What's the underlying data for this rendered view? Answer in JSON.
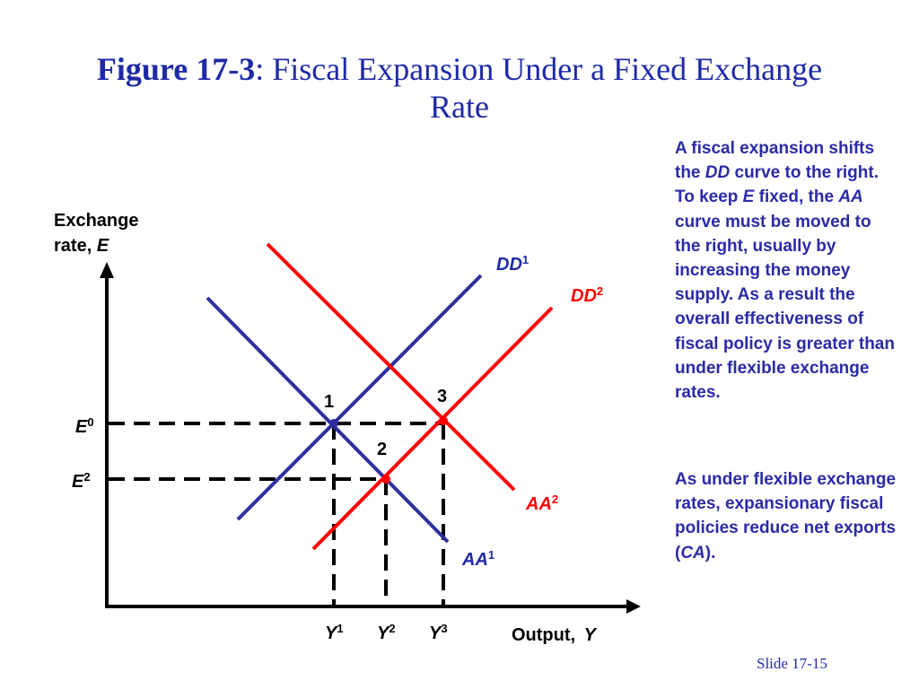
{
  "title": {
    "prefix": "Figure 17-3",
    "rest": ": Fiscal Expansion Under a Fixed Exchange Rate"
  },
  "diagram": {
    "y_axis_label": {
      "line1": "Exchange",
      "line2": "rate, ",
      "var": "E"
    },
    "x_axis_label": {
      "text": "Output, ",
      "var": "Y"
    },
    "curves": [
      {
        "name": "DD",
        "sup": "1",
        "color": "#2f2f9f"
      },
      {
        "name": "DD",
        "sup": "2",
        "color": "#ff0000"
      },
      {
        "name": "AA",
        "sup": "1",
        "color": "#2f2f9f"
      },
      {
        "name": "AA",
        "sup": "2",
        "color": "#ff0000"
      }
    ],
    "levels": {
      "E0": {
        "var": "E",
        "sup": "0"
      },
      "E2": {
        "var": "E",
        "sup": "2"
      }
    },
    "outputs": [
      {
        "var": "Y",
        "sup": "1"
      },
      {
        "var": "Y",
        "sup": "2"
      },
      {
        "var": "Y",
        "sup": "3"
      }
    ],
    "points": [
      "1",
      "2",
      "3"
    ],
    "colors": {
      "blue": "#2f2f9f",
      "red": "#ff0000",
      "axis": "#000000",
      "title": "#1f2aa6"
    }
  },
  "notes": {
    "p1": [
      {
        "t": "A fiscal expansion shifts the "
      },
      {
        "t": "DD",
        "i": true
      },
      {
        "t": " curve to the right. To keep "
      },
      {
        "t": "E",
        "i": true
      },
      {
        "t": " fixed, the "
      },
      {
        "t": "AA",
        "i": true
      },
      {
        "t": " curve must be moved to the right, usually by increasing the money supply. As a result the overall effectiveness of fiscal policy is greater than under flexible exchange rates."
      }
    ],
    "p2": [
      {
        "t": "As under flexible exchange rates, expansionary fiscal policies reduce net exports ("
      },
      {
        "t": "CA",
        "i": true
      },
      {
        "t": ")."
      }
    ]
  },
  "footer": {
    "slide": "Slide 17-15"
  }
}
